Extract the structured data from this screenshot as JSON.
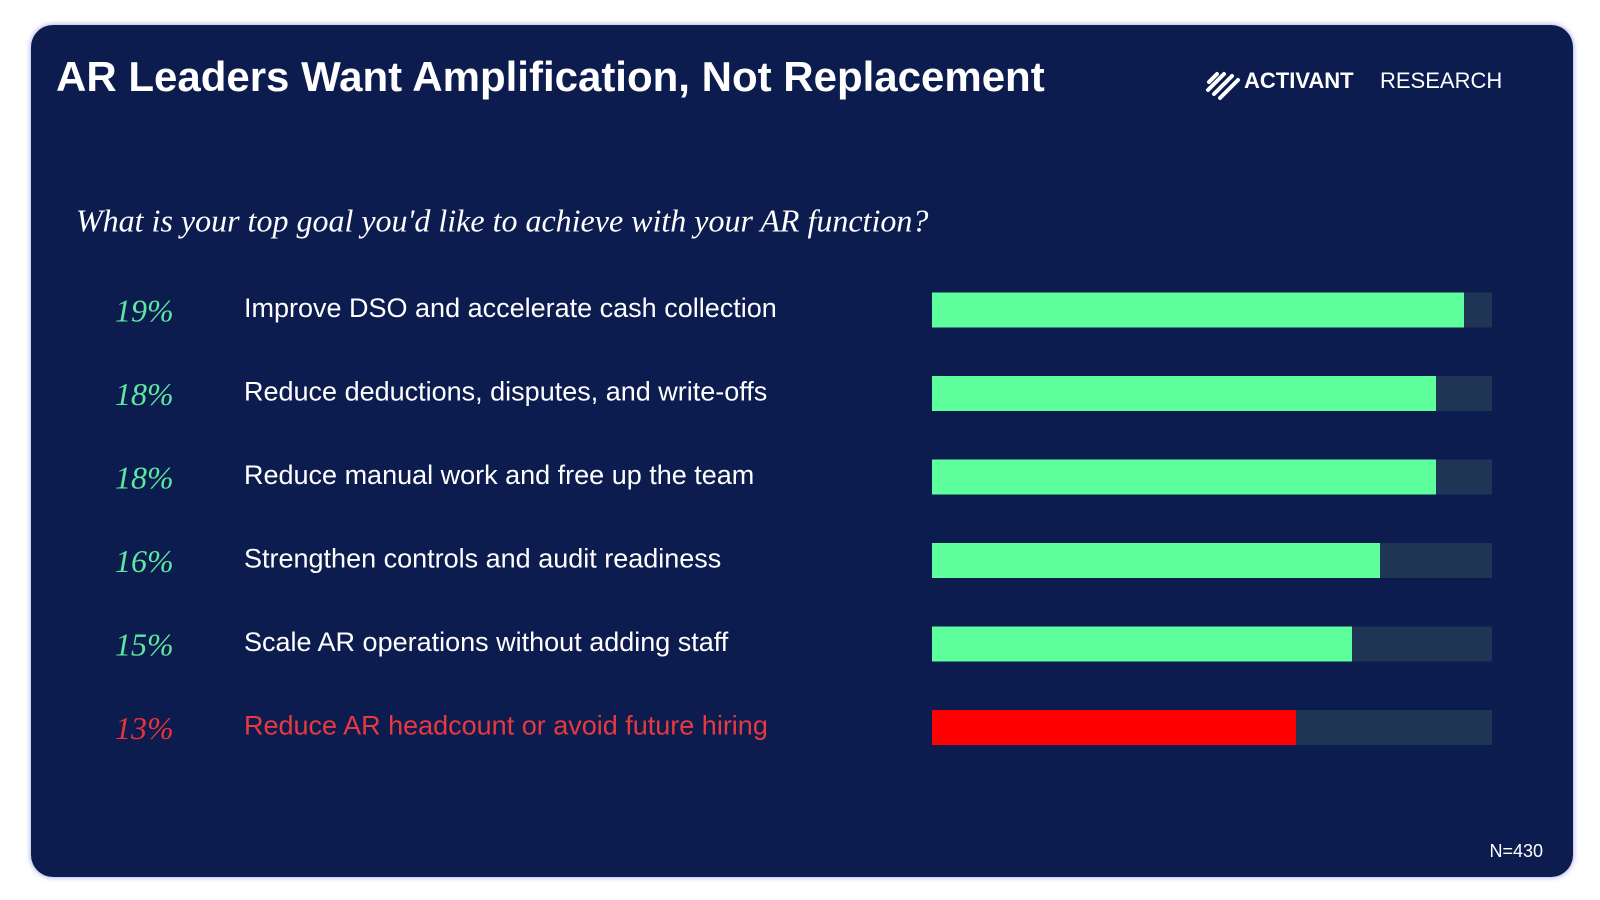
{
  "chart_data": {
    "type": "bar",
    "title": "AR Leaders Want Amplification, Not Replacement",
    "brand": "ACTIVANT",
    "brand_suffix": "RESEARCH",
    "subtitle": "What is your top goal you'd like to achieve with your AR function?",
    "categories": [
      "Improve DSO and accelerate cash collection",
      "Reduce deductions, disputes, and write-offs",
      "Reduce manual work and free up the team",
      "Strengthen controls and audit readiness",
      "Scale AR operations without adding staff",
      "Reduce AR headcount or avoid future hiring"
    ],
    "values": [
      19,
      18,
      18,
      16,
      15,
      13
    ],
    "value_labels": [
      "19%",
      "18%",
      "18%",
      "16%",
      "15%",
      "13%"
    ],
    "colors": [
      "#5cff9b",
      "#5cff9b",
      "#5cff9b",
      "#5cff9b",
      "#5cff9b",
      "#ff0000"
    ],
    "value_label_colors": [
      "#5ce8a0",
      "#5ce8a0",
      "#5ce8a0",
      "#5ce8a0",
      "#5ce8a0",
      "#e8333b"
    ],
    "label_colors": [
      "#ffffff",
      "#ffffff",
      "#ffffff",
      "#ffffff",
      "#ffffff",
      "#e8393f"
    ],
    "track_color": "#1f3556",
    "xlim": [
      0,
      20
    ],
    "note": "N=430"
  }
}
